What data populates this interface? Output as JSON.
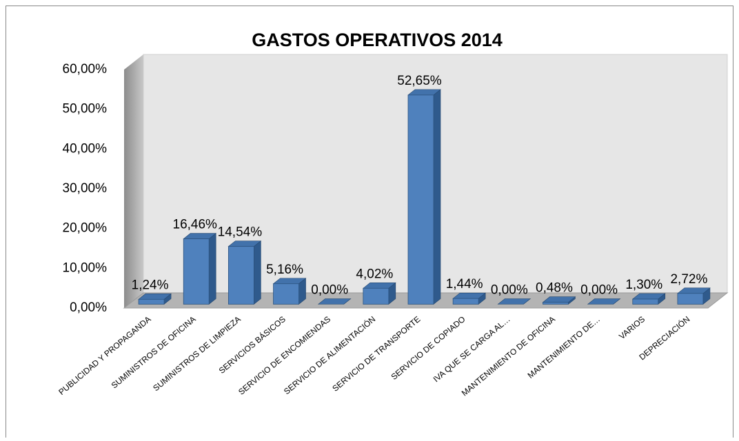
{
  "chart_data": {
    "type": "bar3d",
    "title": "GASTOS OPERATIVOS 2014",
    "categories": [
      "PUBLICIDAD Y PROPAGANDA",
      "SUMINISTROS DE OFICINA",
      "SUMINISTROS DE LIMPIEZA",
      "SERVICIOS BÁSICOS",
      "SERVICIO DE ENCOMIENDAS",
      "SERVICIO DE ALIMENTACIÓN",
      "SERVICIO DE TRANSPORTE",
      "SERVICIO DE COPIADO",
      "IVA QUE SE CARGA AL…",
      "MANTENIMIENTO DE OFICINA",
      "MANTENIMIENTO DE…",
      "VARIOS",
      "DEPRECIACIÓN"
    ],
    "values": [
      1.24,
      16.46,
      14.54,
      5.16,
      0,
      4.02,
      52.65,
      1.44,
      0,
      0.48,
      0,
      1.3,
      2.72
    ],
    "value_labels": [
      "1,24%",
      "16,46%",
      "14,54%",
      "5,16%",
      "0,00%",
      "4,02%",
      "52,65%",
      "1,44%",
      "0,00%",
      "0,48%",
      "0,00%",
      "1,30%",
      "2,72%"
    ],
    "color": "#4f81bd",
    "ylim": [
      0,
      60
    ],
    "yticks": [
      {
        "value": 0,
        "label": "0,00%"
      },
      {
        "value": 10,
        "label": "10,00%"
      },
      {
        "value": 20,
        "label": "20,00%"
      },
      {
        "value": 30,
        "label": "30,00%"
      },
      {
        "value": 40,
        "label": "40,00%"
      },
      {
        "value": 50,
        "label": "50,00%"
      },
      {
        "value": 60,
        "label": "60,00%"
      }
    ],
    "grid": false
  }
}
